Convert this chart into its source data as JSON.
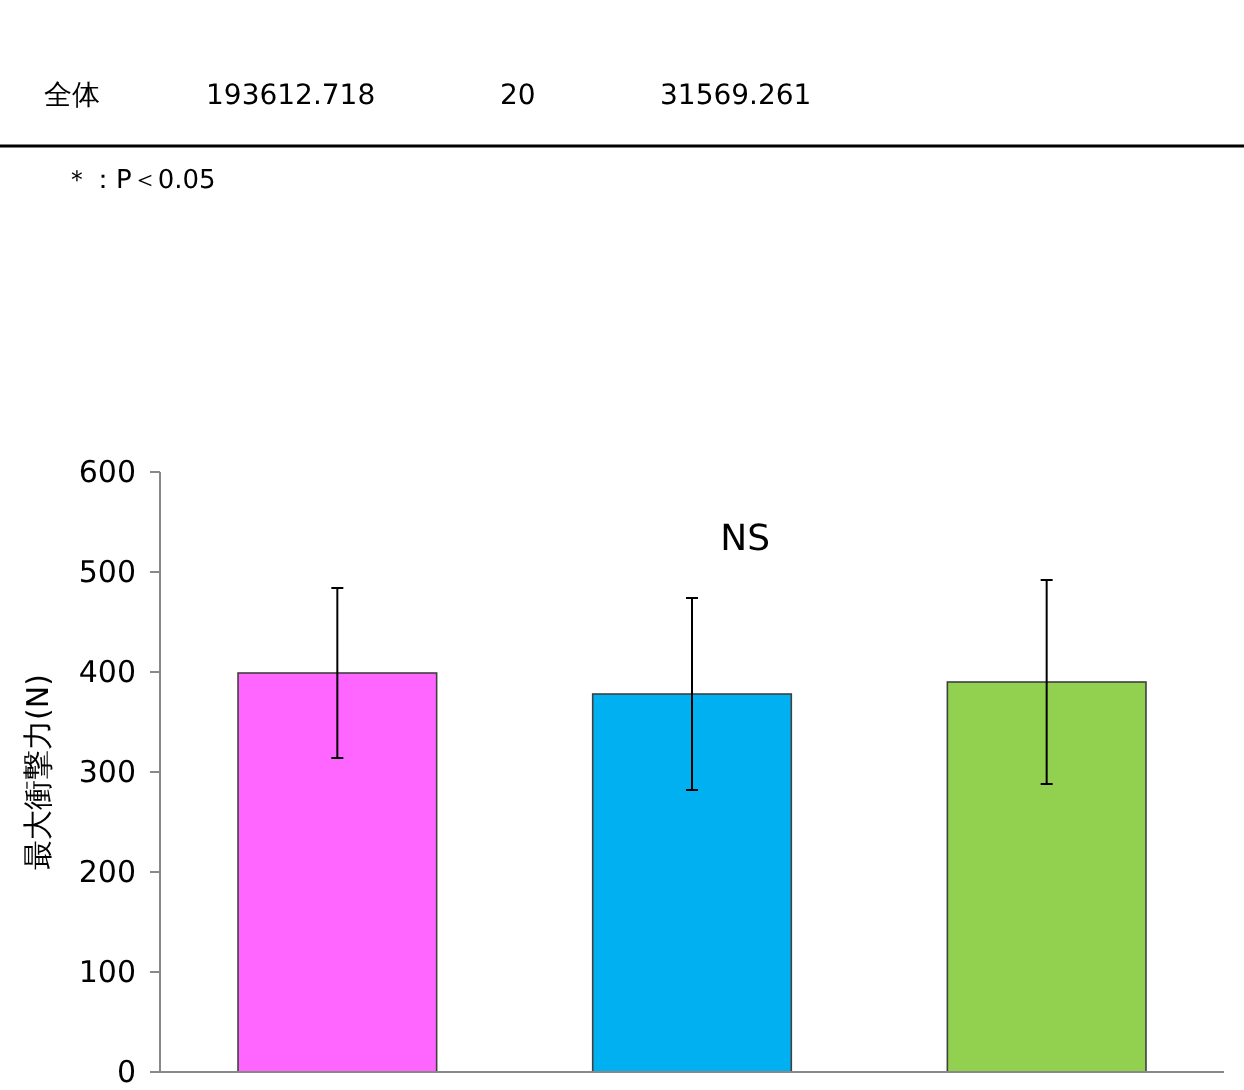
{
  "chart_data": {
    "type": "bar",
    "ylabel": "最大衝撃力(N)",
    "categories": [
      null,
      null,
      null
    ],
    "values": [
      399,
      378,
      390
    ],
    "colors": [
      "#ff66ff",
      "#00b0f0",
      "#92d050"
    ],
    "errors": [
      85,
      96,
      102
    ],
    "ylim": [
      0,
      600
    ],
    "yticks": [
      0,
      100,
      200,
      300,
      400,
      500,
      600
    ],
    "grid": false,
    "annotations": [
      "全体",
      "193612.718",
      "20",
      "31569.261",
      "＊：P＜0.05",
      "NS"
    ]
  }
}
